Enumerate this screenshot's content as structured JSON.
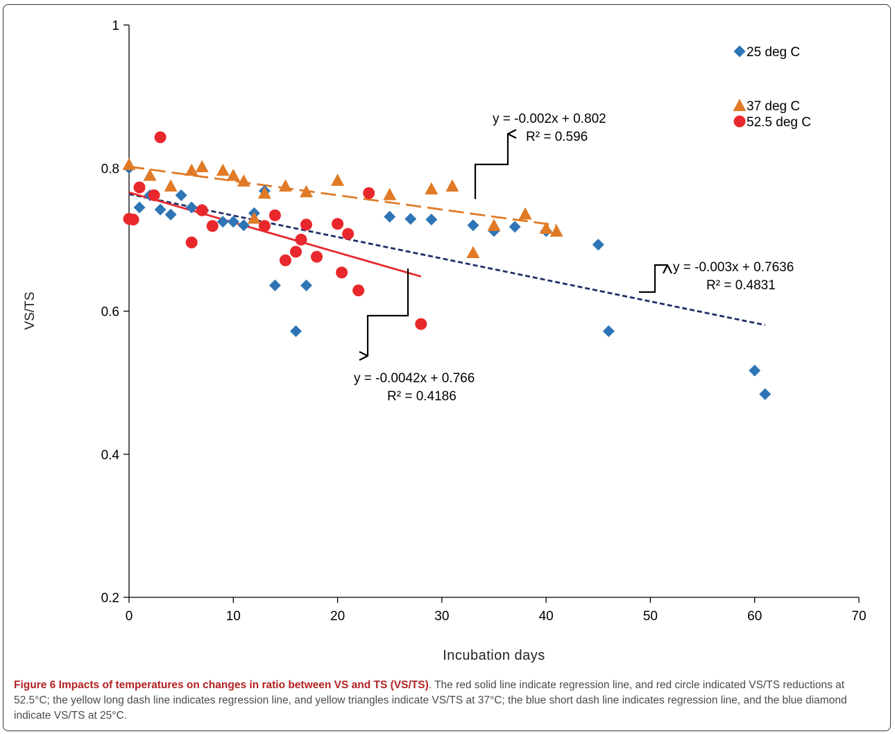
{
  "chart_data": {
    "type": "scatter",
    "xlabel": "Incubation days",
    "ylabel": "VS/TS",
    "xlim": [
      0,
      70
    ],
    "ylim": [
      0.2,
      1.0
    ],
    "xticks": [
      "0",
      "10",
      "20",
      "30",
      "40",
      "50",
      "60",
      "70"
    ],
    "yticks": [
      "0.2",
      "0.4",
      "0.6",
      "0.8",
      "1"
    ],
    "legend_position": "top-right",
    "series": [
      {
        "name": "25 deg C",
        "marker": "diamond",
        "color": "#2e75b6",
        "points": [
          [
            0,
            0.8
          ],
          [
            1,
            0.745
          ],
          [
            2,
            0.762
          ],
          [
            3,
            0.742
          ],
          [
            4,
            0.735
          ],
          [
            5,
            0.762
          ],
          [
            6,
            0.745
          ],
          [
            7,
            0.742
          ],
          [
            9,
            0.725
          ],
          [
            10,
            0.725
          ],
          [
            11,
            0.72
          ],
          [
            12,
            0.737
          ],
          [
            13,
            0.768
          ],
          [
            14,
            0.636
          ],
          [
            16,
            0.572
          ],
          [
            17,
            0.636
          ],
          [
            25,
            0.732
          ],
          [
            27,
            0.729
          ],
          [
            29,
            0.728
          ],
          [
            33,
            0.72
          ],
          [
            35,
            0.712
          ],
          [
            37,
            0.718
          ],
          [
            40,
            0.712
          ],
          [
            45,
            0.693
          ],
          [
            46,
            0.572
          ],
          [
            60,
            0.517
          ],
          [
            61,
            0.484
          ]
        ],
        "trendline": {
          "slope": -0.003,
          "intercept": 0.7636,
          "x_range": [
            0,
            61
          ],
          "style": "short-dash",
          "color": "#1f2f66"
        }
      },
      {
        "name": "37 deg C",
        "marker": "triangle",
        "color": "#e07a26",
        "points": [
          [
            0,
            0.805
          ],
          [
            2,
            0.79
          ],
          [
            4,
            0.775
          ],
          [
            6,
            0.797
          ],
          [
            7,
            0.802
          ],
          [
            9,
            0.797
          ],
          [
            10,
            0.79
          ],
          [
            11,
            0.782
          ],
          [
            12,
            0.73
          ],
          [
            13,
            0.765
          ],
          [
            15,
            0.775
          ],
          [
            17,
            0.767
          ],
          [
            20,
            0.783
          ],
          [
            25,
            0.763
          ],
          [
            29,
            0.771
          ],
          [
            31,
            0.775
          ],
          [
            33,
            0.682
          ],
          [
            35,
            0.72
          ],
          [
            38,
            0.736
          ],
          [
            40,
            0.716
          ],
          [
            41,
            0.712
          ]
        ],
        "trendline": {
          "slope": -0.002,
          "intercept": 0.802,
          "x_range": [
            0,
            41
          ],
          "style": "long-dash",
          "color": "#e07a26"
        }
      },
      {
        "name": "52.5 deg C",
        "marker": "circle",
        "color": "#e8282c",
        "points": [
          [
            0,
            0.729
          ],
          [
            0.4,
            0.728
          ],
          [
            1,
            0.773
          ],
          [
            2.4,
            0.762
          ],
          [
            3,
            0.843
          ],
          [
            6,
            0.696
          ],
          [
            7,
            0.741
          ],
          [
            8,
            0.719
          ],
          [
            13,
            0.719
          ],
          [
            14,
            0.734
          ],
          [
            15,
            0.671
          ],
          [
            16,
            0.683
          ],
          [
            16.5,
            0.7
          ],
          [
            17,
            0.721
          ],
          [
            18,
            0.676
          ],
          [
            20,
            0.722
          ],
          [
            20.4,
            0.654
          ],
          [
            21,
            0.708
          ],
          [
            22,
            0.629
          ],
          [
            23,
            0.765
          ],
          [
            28,
            0.582
          ]
        ],
        "trendline": {
          "slope": -0.0042,
          "intercept": 0.766,
          "x_range": [
            0,
            28
          ],
          "style": "solid",
          "color": "#e8282c"
        }
      }
    ],
    "annotations": [
      {
        "id": "eq37",
        "line1": "y = -0.002x  + 0.802",
        "line2": "R² = 0.596"
      },
      {
        "id": "eq25",
        "line1": "y = -0.003x  + 0.7636",
        "line2": "R² = 0.4831"
      },
      {
        "id": "eq52",
        "line1": "y = -0.0042x  + 0.766",
        "line2": "R² = 0.4186"
      }
    ]
  },
  "caption": {
    "label": "Figure 6 Impacts of temperatures on changes in ratio between VS and TS (VS/TS)",
    "text": ". The red solid line indicate regression line, and red circle indicated VS/TS reductions at 52.5°C; the yellow long dash line indicates regression line, and yellow triangles indicate VS/TS at 37°C; the blue short dash line indicates regression line, and the blue diamond indicate VS/TS at 25°C."
  }
}
